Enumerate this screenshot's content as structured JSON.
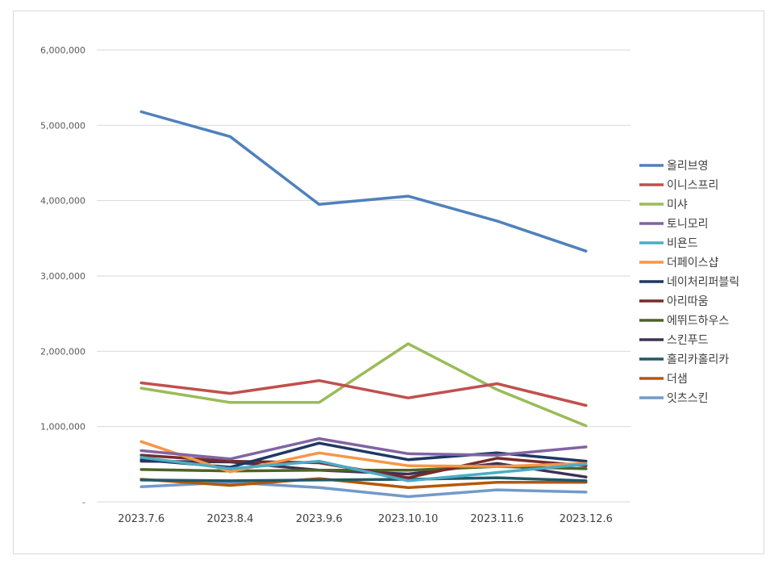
{
  "chart_data": {
    "type": "line",
    "title": "",
    "xlabel": "",
    "ylabel": "",
    "ylim": [
      0,
      6000000
    ],
    "yticks": [
      0,
      1000000,
      2000000,
      3000000,
      4000000,
      5000000,
      6000000
    ],
    "ytick_labels": [
      "-",
      "1,000,000",
      "2,000,000",
      "3,000,000",
      "4,000,000",
      "5,000,000",
      "6,000,000"
    ],
    "categories": [
      "2023.7.6",
      "2023.8.4",
      "2023.9.6",
      "2023.10.10",
      "2023.11.6",
      "2023.12.6"
    ],
    "grid": true,
    "legend_position": "right",
    "series": [
      {
        "name": "올리브영",
        "color": "#4f81bd",
        "values": [
          5180000,
          4850000,
          3950000,
          4060000,
          3730000,
          3330000
        ]
      },
      {
        "name": "이니스프리",
        "color": "#c0504d",
        "values": [
          1580000,
          1440000,
          1610000,
          1380000,
          1570000,
          1280000
        ]
      },
      {
        "name": "미샤",
        "color": "#9bbb59",
        "values": [
          1510000,
          1320000,
          1320000,
          2100000,
          1490000,
          1010000
        ]
      },
      {
        "name": "토니모리",
        "color": "#8064a2",
        "values": [
          680000,
          570000,
          840000,
          640000,
          620000,
          730000
        ]
      },
      {
        "name": "비욘드",
        "color": "#4bacc6",
        "values": [
          590000,
          440000,
          540000,
          280000,
          390000,
          500000
        ]
      },
      {
        "name": "더페이스샵",
        "color": "#f79646",
        "values": [
          800000,
          400000,
          650000,
          480000,
          470000,
          510000
        ]
      },
      {
        "name": "네이처리퍼블릭",
        "color": "#1f3864",
        "values": [
          560000,
          460000,
          780000,
          560000,
          650000,
          540000
        ]
      },
      {
        "name": "아리따움",
        "color": "#772c2a",
        "values": [
          620000,
          540000,
          520000,
          320000,
          580000,
          480000
        ]
      },
      {
        "name": "에뛰드하우스",
        "color": "#4f6228",
        "values": [
          430000,
          410000,
          420000,
          420000,
          470000,
          440000
        ]
      },
      {
        "name": "스킨푸드",
        "color": "#403152",
        "values": [
          540000,
          530000,
          420000,
          370000,
          510000,
          330000
        ]
      },
      {
        "name": "홀리카홀리카",
        "color": "#215968",
        "values": [
          290000,
          280000,
          290000,
          300000,
          320000,
          280000
        ]
      },
      {
        "name": "더샘",
        "color": "#b65708",
        "values": [
          300000,
          220000,
          310000,
          190000,
          260000,
          260000
        ]
      },
      {
        "name": "잇츠스킨",
        "color": "#729aca",
        "values": [
          200000,
          260000,
          190000,
          70000,
          160000,
          130000
        ]
      }
    ]
  }
}
